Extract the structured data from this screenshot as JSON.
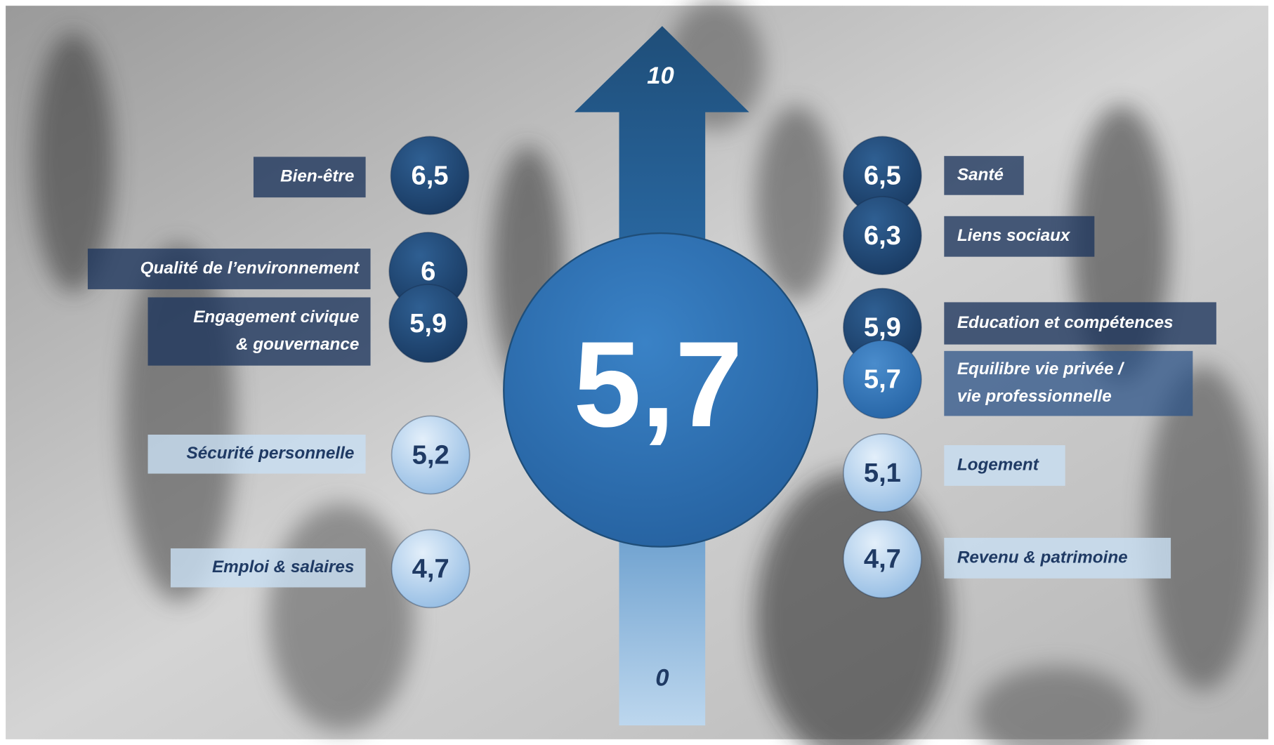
{
  "scale": {
    "top": "10",
    "bottom": "0"
  },
  "overall": "5,7",
  "left": [
    {
      "label": [
        "Bien-être"
      ],
      "score": "6,5"
    },
    {
      "label": [
        "Qualité de l’environnement"
      ],
      "score": "6"
    },
    {
      "label": [
        "Engagement civique",
        "& gouvernance"
      ],
      "score": "5,9"
    },
    {
      "label": [
        "Sécurité personnelle"
      ],
      "score": "5,2"
    },
    {
      "label": [
        "Emploi & salaires"
      ],
      "score": "4,7"
    }
  ],
  "right": [
    {
      "label": [
        "Santé"
      ],
      "score": "6,5"
    },
    {
      "label": [
        "Liens sociaux"
      ],
      "score": "6,3"
    },
    {
      "label": [
        "Education et compétences"
      ],
      "score": "5,9"
    },
    {
      "label": [
        "Equilibre vie privée /",
        "vie professionnelle"
      ],
      "score": "5,7"
    },
    {
      "label": [
        "Logement"
      ],
      "score": "5,1"
    },
    {
      "label": [
        "Revenu & patrimoine"
      ],
      "score": "4,7"
    }
  ]
}
